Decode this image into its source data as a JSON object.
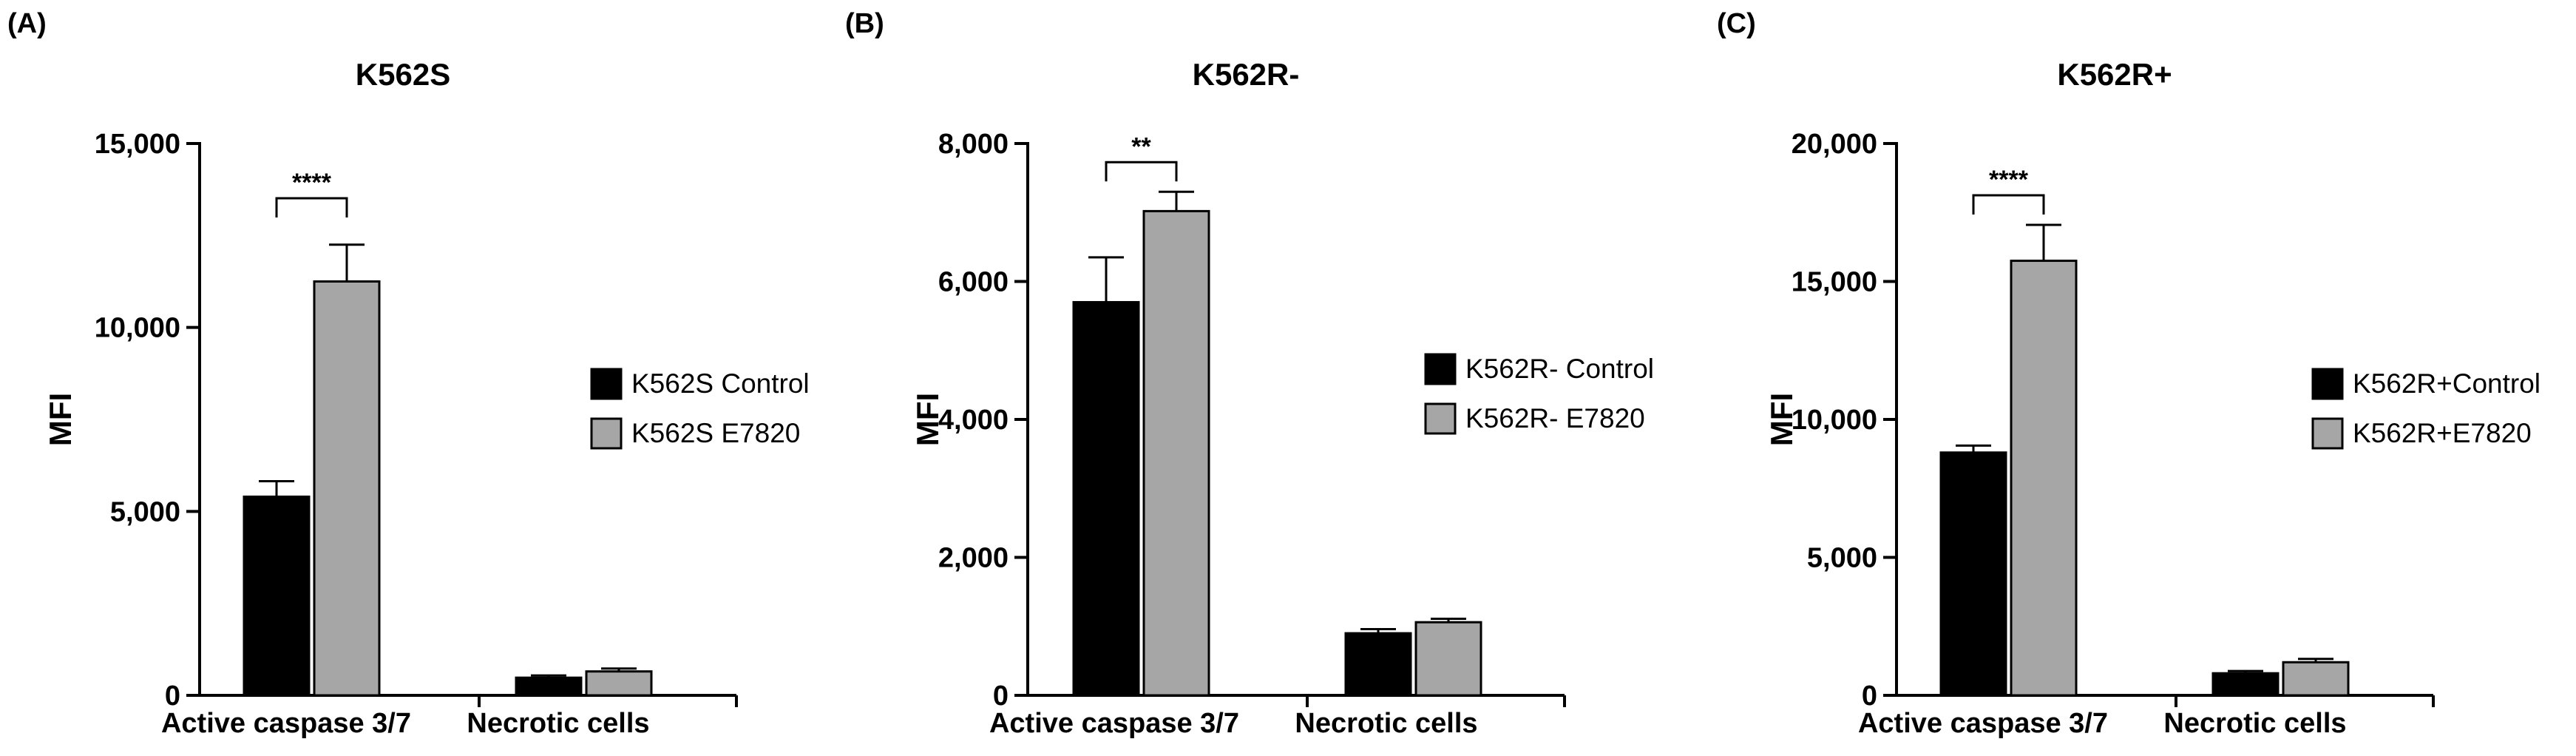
{
  "chart_data": [
    {
      "type": "bar",
      "panel_label": "(A)",
      "title": "K562S",
      "xlabel": "",
      "ylabel": "MFI",
      "ylim": [
        0,
        15000
      ],
      "yticks": [
        0,
        5000,
        10000,
        15000
      ],
      "ytick_labels": [
        "0",
        "5,000",
        "10,000",
        "15,000"
      ],
      "categories": [
        "Active caspase 3/7",
        "Necrotic cells"
      ],
      "series": [
        {
          "name": "K562S Control",
          "color": "#000000",
          "values": [
            5400,
            480
          ],
          "errors": [
            420,
            60
          ]
        },
        {
          "name": "K562S E7820",
          "color": "#a6a6a6",
          "values": [
            11250,
            650
          ],
          "errors": [
            1000,
            80
          ]
        }
      ],
      "significance": {
        "text": "****",
        "category": 0
      },
      "legend_position": "right",
      "grid": false
    },
    {
      "type": "bar",
      "panel_label": "(B)",
      "title": "K562R-",
      "xlabel": "",
      "ylabel": "MFI",
      "ylim": [
        0,
        8000
      ],
      "yticks": [
        0,
        2000,
        4000,
        6000,
        8000
      ],
      "ytick_labels": [
        "0",
        "2,000",
        "4,000",
        "6,000",
        "8,000"
      ],
      "categories": [
        "Active caspase 3/7",
        "Necrotic cells"
      ],
      "series": [
        {
          "name": "K562R- Control",
          "color": "#000000",
          "values": [
            5700,
            900
          ],
          "errors": [
            650,
            60
          ]
        },
        {
          "name": "K562R- E7820",
          "color": "#a6a6a6",
          "values": [
            7020,
            1060
          ],
          "errors": [
            280,
            50
          ]
        }
      ],
      "significance": {
        "text": "**",
        "category": 0
      },
      "legend_position": "right",
      "grid": false
    },
    {
      "type": "bar",
      "panel_label": "(C)",
      "title": "K562R+",
      "xlabel": "",
      "ylabel": "MFI",
      "ylim": [
        0,
        20000
      ],
      "yticks": [
        0,
        5000,
        10000,
        15000,
        20000
      ],
      "ytick_labels": [
        "0",
        "5,000",
        "10,000",
        "15,000",
        "20,000"
      ],
      "categories": [
        "Active caspase 3/7",
        "Necrotic cells"
      ],
      "series": [
        {
          "name": "K562R+Control",
          "color": "#000000",
          "values": [
            8800,
            800
          ],
          "errors": [
            250,
            80
          ]
        },
        {
          "name": "K562R+E7820",
          "color": "#a6a6a6",
          "values": [
            15750,
            1200
          ],
          "errors": [
            1300,
            120
          ]
        }
      ],
      "significance": {
        "text": "****",
        "category": 0
      },
      "legend_position": "right",
      "grid": false
    }
  ]
}
